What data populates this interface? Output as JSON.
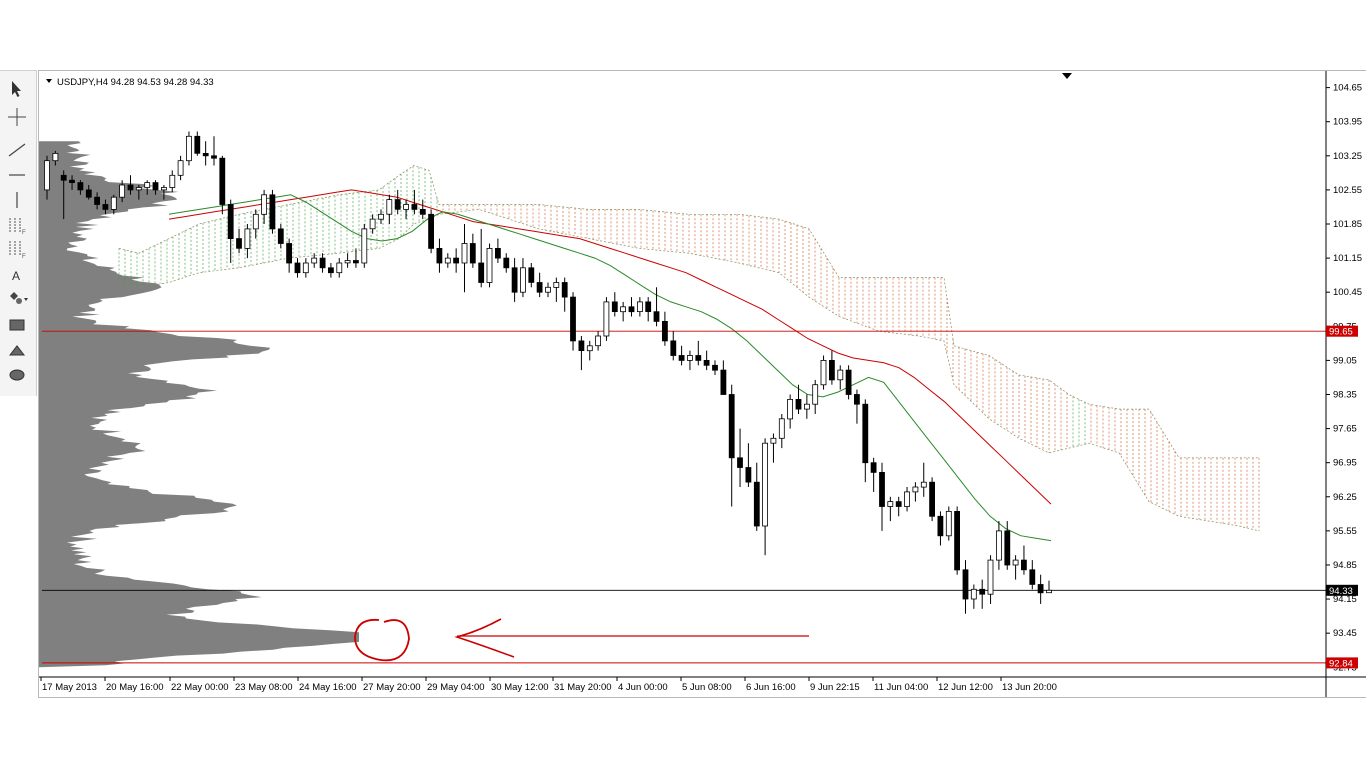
{
  "toolbar": {
    "tools": [
      {
        "name": "cursor-tool-icon"
      },
      {
        "name": "crosshair-tool-icon"
      },
      {
        "name": "trendline-tool-icon"
      },
      {
        "name": "horizontal-line-tool-icon"
      },
      {
        "name": "vertical-line-tool-icon"
      },
      {
        "name": "channel-tool-icon"
      },
      {
        "name": "fibonacci-tool-icon"
      },
      {
        "name": "text-tool-icon"
      },
      {
        "name": "shapes-menu-icon"
      },
      {
        "name": "rectangle-tool-icon"
      },
      {
        "name": "triangle-tool-icon"
      },
      {
        "name": "ellipse-tool-icon"
      }
    ]
  },
  "chart_data": {
    "type": "candlestick",
    "title": "USDJPY,H4  94.28 94.53 94.28 94.33",
    "symbol": "USDJPY,H4",
    "ohlc_header": "94.28 94.53 94.28 94.33",
    "ylim": [
      92.55,
      104.95
    ],
    "y_ticks": [
      "104.65",
      "103.95",
      "103.25",
      "102.55",
      "101.85",
      "101.15",
      "100.45",
      "99.75",
      "99.05",
      "98.35",
      "97.65",
      "96.95",
      "96.25",
      "95.55",
      "94.85",
      "94.15",
      "93.45",
      "92.75"
    ],
    "x_ticks": [
      "17 May 2013",
      "20 May 16:00",
      "22 May 00:00",
      "23 May 08:00",
      "24 May 16:00",
      "27 May 20:00",
      "29 May 04:00",
      "30 May 12:00",
      "31 May 20:00",
      "4 Jun 00:00",
      "5 Jun 08:00",
      "6 Jun 16:00",
      "9 Jun 22:15",
      "11 Jun 04:00",
      "12 Jun 12:00",
      "13 Jun 20:00"
    ],
    "price_tags": [
      {
        "value": 99.65,
        "label": "99.65",
        "color": "#cc0000"
      },
      {
        "value": 94.33,
        "label": "94.33",
        "color": "#000000"
      },
      {
        "value": 92.84,
        "label": "92.84",
        "color": "#cc0000"
      }
    ],
    "candles": [
      [
        102.55,
        103.25,
        102.35,
        103.15
      ],
      [
        103.15,
        103.35,
        103.05,
        103.3
      ],
      [
        102.85,
        102.95,
        101.95,
        102.75
      ],
      [
        102.75,
        102.85,
        102.55,
        102.7
      ],
      [
        102.7,
        102.75,
        102.45,
        102.55
      ],
      [
        102.55,
        102.65,
        102.35,
        102.4
      ],
      [
        102.4,
        102.5,
        102.15,
        102.25
      ],
      [
        102.25,
        102.35,
        102.05,
        102.15
      ],
      [
        102.15,
        102.45,
        102.05,
        102.4
      ],
      [
        102.4,
        102.75,
        102.3,
        102.65
      ],
      [
        102.65,
        102.85,
        102.45,
        102.55
      ],
      [
        102.55,
        102.65,
        102.35,
        102.6
      ],
      [
        102.6,
        102.75,
        102.45,
        102.7
      ],
      [
        102.7,
        102.75,
        102.45,
        102.55
      ],
      [
        102.55,
        102.65,
        102.35,
        102.6
      ],
      [
        102.6,
        102.95,
        102.5,
        102.85
      ],
      [
        102.85,
        103.25,
        102.75,
        103.15
      ],
      [
        103.15,
        103.75,
        103.05,
        103.65
      ],
      [
        103.65,
        103.75,
        103.25,
        103.3
      ],
      [
        103.3,
        103.55,
        103.05,
        103.25
      ],
      [
        103.25,
        103.65,
        103.05,
        103.2
      ],
      [
        103.2,
        103.25,
        102.05,
        102.25
      ],
      [
        102.25,
        102.35,
        101.05,
        101.55
      ],
      [
        101.55,
        101.75,
        101.25,
        101.35
      ],
      [
        101.35,
        101.85,
        101.15,
        101.75
      ],
      [
        101.75,
        102.15,
        101.55,
        102.05
      ],
      [
        102.05,
        102.55,
        101.85,
        102.45
      ],
      [
        102.45,
        102.55,
        101.65,
        101.75
      ],
      [
        101.75,
        101.85,
        101.35,
        101.45
      ],
      [
        101.45,
        101.55,
        100.85,
        101.05
      ],
      [
        101.05,
        101.15,
        100.75,
        100.85
      ],
      [
        100.85,
        101.15,
        100.75,
        101.05
      ],
      [
        101.05,
        101.25,
        100.95,
        101.15
      ],
      [
        101.15,
        101.25,
        100.85,
        100.95
      ],
      [
        100.95,
        101.05,
        100.75,
        100.85
      ],
      [
        100.85,
        101.15,
        100.75,
        101.05
      ],
      [
        101.05,
        101.25,
        100.95,
        101.1
      ],
      [
        101.1,
        101.35,
        100.95,
        101.05
      ],
      [
        101.05,
        101.85,
        100.95,
        101.75
      ],
      [
        101.75,
        102.05,
        101.65,
        101.95
      ],
      [
        101.95,
        102.15,
        101.85,
        102.05
      ],
      [
        102.05,
        102.45,
        101.85,
        102.35
      ],
      [
        102.35,
        102.55,
        102.05,
        102.15
      ],
      [
        102.15,
        102.35,
        101.95,
        102.25
      ],
      [
        102.25,
        102.55,
        102.05,
        102.15
      ],
      [
        102.15,
        102.35,
        101.95,
        102.05
      ],
      [
        102.05,
        102.15,
        101.25,
        101.35
      ],
      [
        101.35,
        101.55,
        100.85,
        101.05
      ],
      [
        101.05,
        101.25,
        100.95,
        101.15
      ],
      [
        101.15,
        101.35,
        100.85,
        101.05
      ],
      [
        101.05,
        101.85,
        100.45,
        101.45
      ],
      [
        101.45,
        101.65,
        100.95,
        101.05
      ],
      [
        101.05,
        101.75,
        100.55,
        100.65
      ],
      [
        100.65,
        101.45,
        100.55,
        101.35
      ],
      [
        101.35,
        101.55,
        101.05,
        101.15
      ],
      [
        101.15,
        101.25,
        100.85,
        100.95
      ],
      [
        100.95,
        101.15,
        100.25,
        100.45
      ],
      [
        100.45,
        101.15,
        100.35,
        100.95
      ],
      [
        100.95,
        101.05,
        100.55,
        100.65
      ],
      [
        100.65,
        100.85,
        100.35,
        100.45
      ],
      [
        100.45,
        100.65,
        100.35,
        100.55
      ],
      [
        100.55,
        100.75,
        100.25,
        100.65
      ],
      [
        100.65,
        100.75,
        100.05,
        100.35
      ],
      [
        100.35,
        100.45,
        99.25,
        99.45
      ],
      [
        99.45,
        99.55,
        98.85,
        99.25
      ],
      [
        99.25,
        99.45,
        99.05,
        99.35
      ],
      [
        99.35,
        99.65,
        99.25,
        99.55
      ],
      [
        99.55,
        100.35,
        99.45,
        100.25
      ],
      [
        100.25,
        100.45,
        99.95,
        100.05
      ],
      [
        100.05,
        100.25,
        99.85,
        100.15
      ],
      [
        100.15,
        100.35,
        99.95,
        100.05
      ],
      [
        100.05,
        100.35,
        99.95,
        100.25
      ],
      [
        100.25,
        100.35,
        99.85,
        100.05
      ],
      [
        100.05,
        100.55,
        99.75,
        99.85
      ],
      [
        99.85,
        100.05,
        99.35,
        99.45
      ],
      [
        99.45,
        99.65,
        99.05,
        99.15
      ],
      [
        99.15,
        99.35,
        98.95,
        99.05
      ],
      [
        99.05,
        99.25,
        98.85,
        99.15
      ],
      [
        99.15,
        99.45,
        98.95,
        99.05
      ],
      [
        99.05,
        99.25,
        98.85,
        98.95
      ],
      [
        98.95,
        99.05,
        98.75,
        98.85
      ],
      [
        98.85,
        99.05,
        98.45,
        98.35
      ],
      [
        98.35,
        98.55,
        96.05,
        97.05
      ],
      [
        97.05,
        97.65,
        96.45,
        96.85
      ],
      [
        96.85,
        97.35,
        96.45,
        96.55
      ],
      [
        96.55,
        96.95,
        95.55,
        95.65
      ],
      [
        95.65,
        97.45,
        95.05,
        97.35
      ],
      [
        97.35,
        97.55,
        96.95,
        97.45
      ],
      [
        97.45,
        97.95,
        97.25,
        97.85
      ],
      [
        97.85,
        98.35,
        97.65,
        98.25
      ],
      [
        98.25,
        98.55,
        97.95,
        98.05
      ],
      [
        98.05,
        98.35,
        97.85,
        98.15
      ],
      [
        98.15,
        98.65,
        97.95,
        98.55
      ],
      [
        98.55,
        99.15,
        98.45,
        99.05
      ],
      [
        99.05,
        99.25,
        98.55,
        98.65
      ],
      [
        98.65,
        98.95,
        98.45,
        98.85
      ],
      [
        98.85,
        98.95,
        98.25,
        98.35
      ],
      [
        98.35,
        98.45,
        97.75,
        98.15
      ],
      [
        98.15,
        98.25,
        96.55,
        96.95
      ],
      [
        96.95,
        97.05,
        96.35,
        96.75
      ],
      [
        96.75,
        96.95,
        95.55,
        96.05
      ],
      [
        96.05,
        96.25,
        95.75,
        96.15
      ],
      [
        96.15,
        96.25,
        95.85,
        96.05
      ],
      [
        96.05,
        96.45,
        95.95,
        96.35
      ],
      [
        96.35,
        96.55,
        96.15,
        96.45
      ],
      [
        96.45,
        96.95,
        96.25,
        96.55
      ],
      [
        96.55,
        96.65,
        95.75,
        95.85
      ],
      [
        95.85,
        95.95,
        95.25,
        95.45
      ],
      [
        95.45,
        96.05,
        95.35,
        95.95
      ],
      [
        95.95,
        96.05,
        94.65,
        94.75
      ],
      [
        94.75,
        94.95,
        93.85,
        94.15
      ],
      [
        94.15,
        94.45,
        93.95,
        94.35
      ],
      [
        94.35,
        94.55,
        93.95,
        94.25
      ],
      [
        94.25,
        95.05,
        94.05,
        94.95
      ],
      [
        94.95,
        95.75,
        94.75,
        95.55
      ],
      [
        95.55,
        95.75,
        94.75,
        94.85
      ],
      [
        94.85,
        95.05,
        94.55,
        94.95
      ],
      [
        94.95,
        95.25,
        94.65,
        94.75
      ],
      [
        94.75,
        94.95,
        94.35,
        94.45
      ],
      [
        94.45,
        94.65,
        94.05,
        94.28
      ],
      [
        94.28,
        94.53,
        94.28,
        94.33
      ]
    ],
    "series": [
      {
        "name": "",
        "color": "#cc0000",
        "values": [
          101.95,
          102.0,
          102.05,
          102.1,
          102.15,
          102.2,
          102.25,
          102.3,
          102.35,
          102.4,
          102.45,
          102.5,
          102.55,
          102.5,
          102.45,
          102.4,
          102.3,
          102.2,
          102.1,
          102.0,
          101.9,
          101.85,
          101.8,
          101.75,
          101.7,
          101.65,
          101.6,
          101.55,
          101.45,
          101.35,
          101.25,
          101.15,
          101.05,
          100.95,
          100.85,
          100.7,
          100.55,
          100.4,
          100.25,
          100.1,
          99.9,
          99.7,
          99.5,
          99.35,
          99.2,
          99.1,
          99.05,
          99.0,
          98.9,
          98.7,
          98.45,
          98.2,
          97.9,
          97.6,
          97.3,
          97.0,
          96.7,
          96.4,
          96.1
        ]
      },
      {
        "name": "",
        "color": "#2a8a2a",
        "values": [
          102.05,
          102.1,
          102.15,
          102.2,
          102.25,
          102.3,
          102.35,
          102.4,
          102.45,
          102.3,
          102.1,
          101.9,
          101.7,
          101.55,
          101.5,
          101.55,
          101.7,
          101.95,
          102.1,
          102.05,
          101.95,
          101.85,
          101.75,
          101.65,
          101.55,
          101.45,
          101.35,
          101.25,
          101.15,
          101.0,
          100.8,
          100.6,
          100.4,
          100.25,
          100.15,
          100.05,
          99.9,
          99.7,
          99.45,
          99.15,
          98.85,
          98.55,
          98.35,
          98.3,
          98.4,
          98.55,
          98.7,
          98.6,
          98.2,
          97.8,
          97.4,
          97.0,
          96.6,
          96.2,
          95.85,
          95.6,
          95.45,
          95.4,
          95.35
        ]
      }
    ],
    "annotations": [
      {
        "type": "arrow",
        "color": "#cc0000",
        "direction": "left"
      },
      {
        "type": "circle",
        "color": "#cc0000"
      }
    ]
  }
}
